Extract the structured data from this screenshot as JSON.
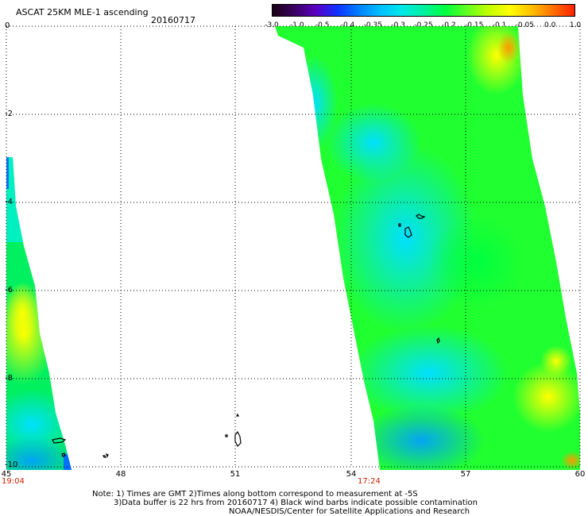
{
  "header": {
    "title": "ASCAT 25KM MLE-1 ascending",
    "date": "20160717"
  },
  "colorbar": {
    "labels": [
      "-3.0",
      "-1.0",
      "-0.5",
      "-0.4",
      "-0.35",
      "-0.3",
      "-0.25",
      "-0.2",
      "-0.15",
      "-0.1",
      "-0.05",
      "0.0",
      "1.0"
    ],
    "colors": [
      "#1a0012",
      "#3a0060",
      "#5a00c0",
      "#1030ff",
      "#0080ff",
      "#00c0ff",
      "#00e8e8",
      "#00f0a0",
      "#00ff40",
      "#60ff20",
      "#c0ff00",
      "#ffff00",
      "#ffc000",
      "#ff7000",
      "#ff2000"
    ]
  },
  "axes": {
    "y_labels": [
      "0",
      "-2",
      "-4",
      "-6",
      "-8",
      "-10"
    ],
    "x_labels": [
      "45",
      "48",
      "51",
      "54",
      "57",
      "60"
    ]
  },
  "pass_times": {
    "left": "19:04",
    "right": "17:24"
  },
  "notes": {
    "line1": "Note: 1) Times are GMT 2)Times along bottom correspond to measurement at -5S",
    "line2": "3)Data buffer is 22 hrs from 20160717 4) Black wind barbs indicate possible contamination",
    "line3": "NOAA/NESDIS/Center for Satellite Applications and Research"
  }
}
